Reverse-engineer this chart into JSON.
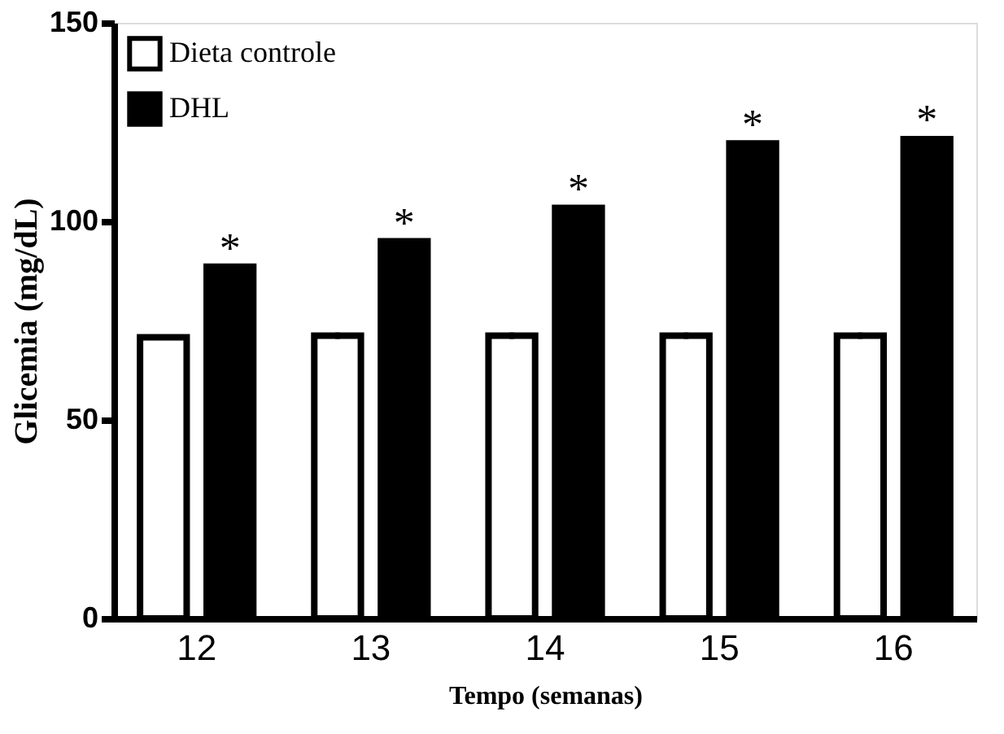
{
  "chart_data": {
    "type": "bar",
    "xlabel": "Tempo (semanas)",
    "ylabel": "Glicemia (mg/dL)",
    "categories": [
      "12",
      "13",
      "14",
      "15",
      "16"
    ],
    "series": [
      {
        "name": "Dieta controle",
        "color": "#ffffff",
        "values": [
          70.8,
          71.2,
          71.2,
          71.2,
          71.2
        ],
        "errors": [
          0.4,
          0.8,
          0.8,
          0.8,
          0.8
        ]
      },
      {
        "name": "DHL",
        "color": "#000000",
        "values": [
          88.6,
          95.0,
          103.4,
          119.6,
          120.7
        ],
        "errors": [
          0.3,
          0.3,
          0.4,
          0.5,
          0.6
        ]
      }
    ],
    "ylim": [
      0,
      150
    ],
    "yticks": [
      0,
      50,
      100,
      150
    ],
    "grid": false,
    "legend": "top left",
    "annotations": [
      "*",
      "*",
      "*",
      "*",
      "*"
    ]
  }
}
